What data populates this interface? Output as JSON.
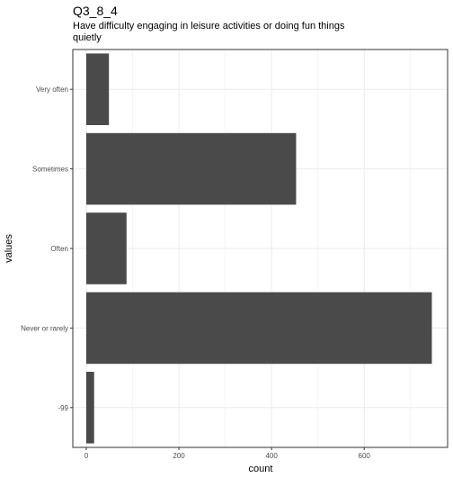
{
  "chart_data": {
    "type": "bar",
    "orientation": "horizontal",
    "title": "Q3_8_4",
    "subtitle_lines": [
      "Have difficulty engaging in leisure activities or doing fun things",
      "quietly"
    ],
    "xlabel": "count",
    "ylabel": "values",
    "categories": [
      "Very often",
      "Sometimes",
      "Often",
      "Never or rarely",
      "-99"
    ],
    "values": [
      49,
      453,
      87,
      746,
      17
    ],
    "x_ticks": [
      0,
      200,
      400,
      600
    ],
    "xlim": [
      -29,
      780
    ],
    "grid": true,
    "bar_color": "#4a4a4a",
    "grid_color": "#ebebeb",
    "panel_border_color": "#333333"
  }
}
